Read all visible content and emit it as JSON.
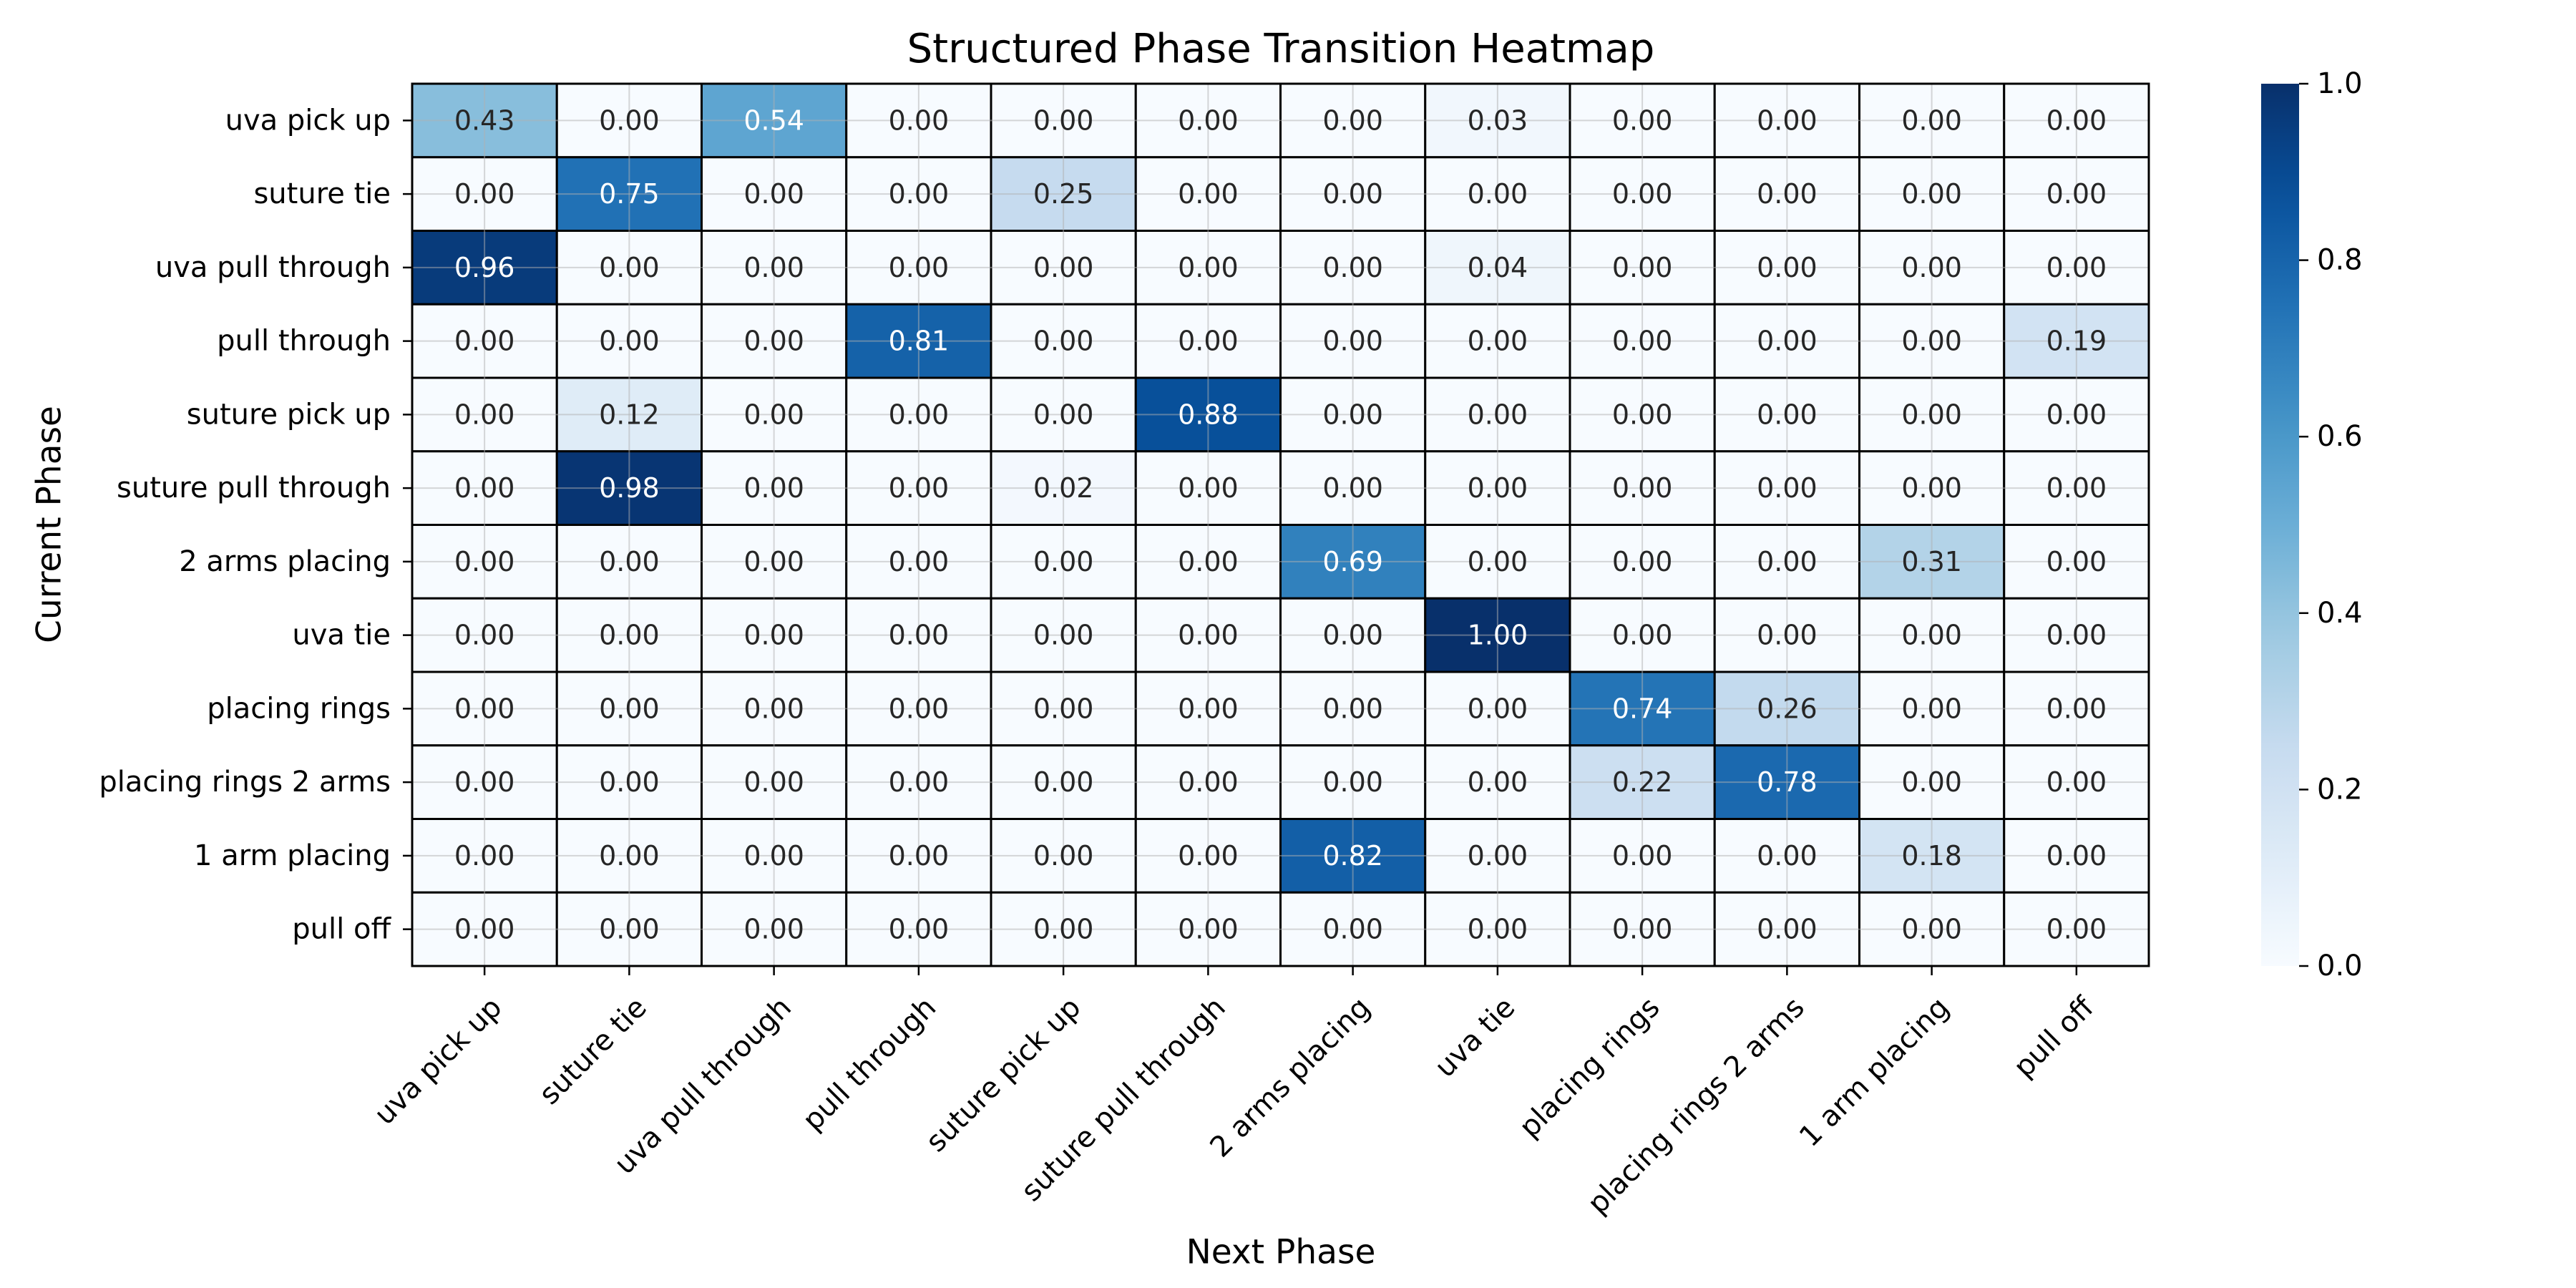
{
  "chart_data": {
    "type": "heatmap",
    "title": "Structured Phase Transition Heatmap",
    "xlabel": "Next Phase",
    "ylabel": "Current Phase",
    "x_categories": [
      "uva pick up",
      "suture tie",
      "uva pull through",
      "pull through",
      "suture pick up",
      "suture pull through",
      "2 arms placing",
      "uva tie",
      "placing rings",
      "placing rings 2 arms",
      "1 arm placing",
      "pull off"
    ],
    "y_categories": [
      "uva pick up",
      "suture tie",
      "uva pull through",
      "pull through",
      "suture pick up",
      "suture pull through",
      "2 arms placing",
      "uva tie",
      "placing rings",
      "placing rings 2 arms",
      "1 arm placing",
      "pull off"
    ],
    "values": [
      [
        0.43,
        0.0,
        0.54,
        0.0,
        0.0,
        0.0,
        0.0,
        0.03,
        0.0,
        0.0,
        0.0,
        0.0
      ],
      [
        0.0,
        0.75,
        0.0,
        0.0,
        0.25,
        0.0,
        0.0,
        0.0,
        0.0,
        0.0,
        0.0,
        0.0
      ],
      [
        0.96,
        0.0,
        0.0,
        0.0,
        0.0,
        0.0,
        0.0,
        0.04,
        0.0,
        0.0,
        0.0,
        0.0
      ],
      [
        0.0,
        0.0,
        0.0,
        0.81,
        0.0,
        0.0,
        0.0,
        0.0,
        0.0,
        0.0,
        0.0,
        0.19
      ],
      [
        0.0,
        0.12,
        0.0,
        0.0,
        0.0,
        0.88,
        0.0,
        0.0,
        0.0,
        0.0,
        0.0,
        0.0
      ],
      [
        0.0,
        0.98,
        0.0,
        0.0,
        0.02,
        0.0,
        0.0,
        0.0,
        0.0,
        0.0,
        0.0,
        0.0
      ],
      [
        0.0,
        0.0,
        0.0,
        0.0,
        0.0,
        0.0,
        0.69,
        0.0,
        0.0,
        0.0,
        0.31,
        0.0
      ],
      [
        0.0,
        0.0,
        0.0,
        0.0,
        0.0,
        0.0,
        0.0,
        1.0,
        0.0,
        0.0,
        0.0,
        0.0
      ],
      [
        0.0,
        0.0,
        0.0,
        0.0,
        0.0,
        0.0,
        0.0,
        0.0,
        0.74,
        0.26,
        0.0,
        0.0
      ],
      [
        0.0,
        0.0,
        0.0,
        0.0,
        0.0,
        0.0,
        0.0,
        0.0,
        0.22,
        0.78,
        0.0,
        0.0
      ],
      [
        0.0,
        0.0,
        0.0,
        0.0,
        0.0,
        0.0,
        0.82,
        0.0,
        0.0,
        0.0,
        0.18,
        0.0
      ],
      [
        0.0,
        0.0,
        0.0,
        0.0,
        0.0,
        0.0,
        0.0,
        0.0,
        0.0,
        0.0,
        0.0,
        0.0
      ]
    ],
    "value_format": "2 decimals",
    "vmin": 0.0,
    "vmax": 1.0,
    "colormap": "Blues",
    "colorbar": {
      "ticks": [
        0.0,
        0.2,
        0.4,
        0.6,
        0.8,
        1.0
      ],
      "tick_labels": [
        "0.0",
        "0.2",
        "0.4",
        "0.6",
        "0.8",
        "1.0"
      ],
      "position": "right"
    },
    "grid": true,
    "cell_border_color": "#000000",
    "annotation_dark_text_color": "#262626",
    "annotation_light_text_color": "#ffffff"
  }
}
